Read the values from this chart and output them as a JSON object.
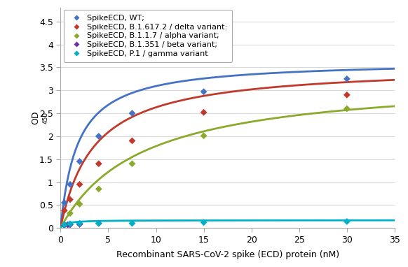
{
  "xlabel": "Recombinant SARS-CoV-2 spike (ECD) protein (nM)",
  "ylabel_main": "OD",
  "ylabel_sub": "450",
  "xlim": [
    0,
    35
  ],
  "ylim": [
    0,
    4.8
  ],
  "yticks": [
    0,
    0.5,
    1.0,
    1.5,
    2.0,
    2.5,
    3.0,
    3.5,
    4.0,
    4.5
  ],
  "xticks": [
    0,
    5,
    10,
    15,
    20,
    25,
    30,
    35
  ],
  "series": [
    {
      "label": "SpikeECD, WT;",
      "color": "#4472c4",
      "scatter_x": [
        0.4,
        1.0,
        2.0,
        4.0,
        7.5,
        15.0,
        30.0
      ],
      "scatter_y": [
        0.55,
        0.95,
        1.45,
        2.0,
        2.5,
        2.97,
        3.25
      ],
      "has_curve": true,
      "Vmax": 3.65,
      "Km": 1.8
    },
    {
      "label": "SpikeECD, B.1.617.2 / delta variant:",
      "color": "#c0392b",
      "scatter_x": [
        0.4,
        1.0,
        2.0,
        4.0,
        7.5,
        15.0,
        30.0
      ],
      "scatter_y": [
        0.38,
        0.62,
        0.95,
        1.4,
        1.9,
        2.52,
        2.9
      ],
      "has_curve": true,
      "Vmax": 3.55,
      "Km": 3.5
    },
    {
      "label": "SpikeECD, B.1.1.7 / alpha variant;",
      "color": "#8aaa2c",
      "scatter_x": [
        0.4,
        1.0,
        2.0,
        4.0,
        7.5,
        15.0,
        30.0
      ],
      "scatter_y": [
        0.08,
        0.32,
        0.52,
        0.85,
        1.4,
        2.01,
        2.6
      ],
      "has_curve": true,
      "Vmax": 3.3,
      "Km": 8.5
    },
    {
      "label": "SpikeECD, B.1.351 / beta variant;",
      "color": "#7030a0",
      "scatter_x": [
        0.4,
        0.75,
        1.0,
        2.0,
        4.0
      ],
      "scatter_y": [
        0.06,
        0.07,
        0.07,
        0.08,
        0.1
      ],
      "has_curve": false,
      "Vmax": null,
      "Km": null
    },
    {
      "label": "SpikeECD, P.1 / gamma variant",
      "color": "#00b0c8",
      "scatter_x": [
        0.4,
        1.0,
        2.0,
        4.0,
        7.5,
        15.0,
        30.0
      ],
      "scatter_y": [
        0.07,
        0.09,
        0.1,
        0.1,
        0.1,
        0.12,
        0.14
      ],
      "has_curve": true,
      "Vmax": 0.17,
      "Km": 0.5
    }
  ],
  "background_color": "#ffffff",
  "plot_bg_color": "#ffffff",
  "grid_color": "#d9d9d9",
  "legend_fontsize": 8,
  "axis_label_fontsize": 9,
  "tick_fontsize": 9,
  "figsize": [
    5.82,
    3.82
  ],
  "dpi": 100
}
